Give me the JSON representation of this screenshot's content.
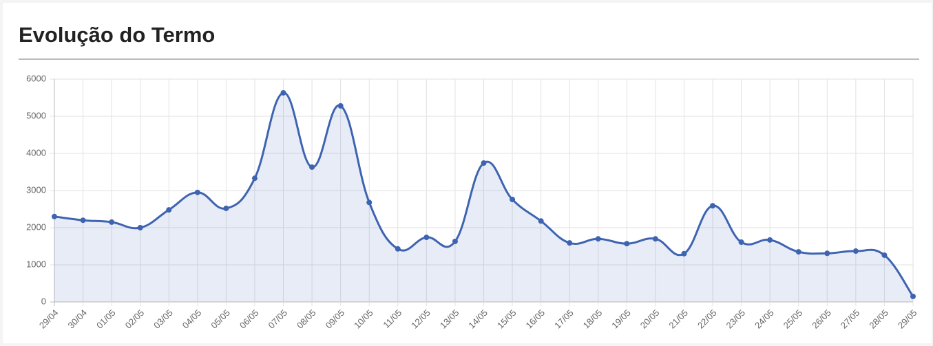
{
  "chart_data": {
    "type": "line",
    "title": "Evolução do Termo",
    "categories": [
      "29/04",
      "30/04",
      "01/05",
      "02/05",
      "03/05",
      "04/05",
      "05/05",
      "06/05",
      "07/05",
      "08/05",
      "09/05",
      "10/05",
      "11/05",
      "12/05",
      "13/05",
      "14/05",
      "15/05",
      "16/05",
      "17/05",
      "18/05",
      "19/05",
      "20/05",
      "21/05",
      "22/05",
      "23/05",
      "24/05",
      "25/05",
      "26/05",
      "27/05",
      "28/05",
      "29/05"
    ],
    "series": [
      {
        "color": "#3e64b1",
        "values": [
          2300,
          2200,
          2150,
          2000,
          2480,
          2950,
          2520,
          3330,
          5630,
          3630,
          5280,
          2680,
          1430,
          1740,
          1630,
          3740,
          2760,
          2180,
          1590,
          1700,
          1570,
          1700,
          1300,
          2590,
          1610,
          1670,
          1350,
          1310,
          1370,
          1260,
          150
        ]
      }
    ],
    "ylim": [
      0,
      6000
    ],
    "yticks": [
      0,
      1000,
      2000,
      3000,
      4000,
      5000,
      6000
    ],
    "grid": true
  }
}
